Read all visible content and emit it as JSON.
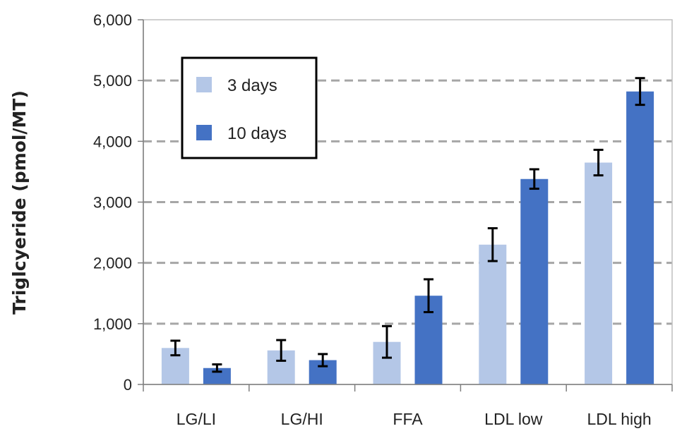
{
  "chart_data": {
    "type": "bar",
    "title": "",
    "xlabel": "",
    "ylabel": "Triglcyeride (pmol/MT)",
    "ylim": [
      0,
      6000
    ],
    "yticks": [
      0,
      1000,
      2000,
      3000,
      4000,
      5000,
      6000
    ],
    "ytick_labels": [
      "0",
      "1,000",
      "2,000",
      "3,000",
      "4,000",
      "5,000",
      "6,000"
    ],
    "grid": "horizontal dashed",
    "legend_position": "top-left",
    "categories": [
      "LG/LI",
      "LG/HI",
      "FFA",
      "LDL low",
      "LDL high"
    ],
    "series": [
      {
        "name": "3 days",
        "color": "#b4c7e7",
        "values": [
          600,
          560,
          700,
          2300,
          3650
        ],
        "error": [
          120,
          170,
          260,
          270,
          210
        ]
      },
      {
        "name": "10 days",
        "color": "#4472c4",
        "values": [
          270,
          400,
          1460,
          3380,
          4820
        ],
        "error": [
          60,
          100,
          270,
          160,
          220
        ]
      }
    ]
  }
}
